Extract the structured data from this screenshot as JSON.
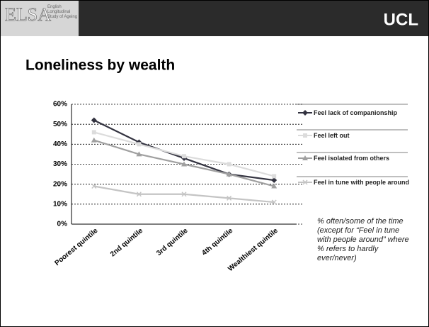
{
  "header": {
    "logo": "ELSA",
    "logo_subtitle": "English Longitudinal Study of Ageing",
    "brand": "UCL"
  },
  "chart_data": {
    "type": "line",
    "title": "Loneliness by wealth",
    "categories": [
      "Poorest quintile",
      "2nd quintile",
      "3rd quintile",
      "4th quintile",
      "Wealthiest quintile"
    ],
    "series": [
      {
        "name": "Feel lack of companionship",
        "color": "#333340",
        "marker": "diamond",
        "values": [
          52,
          41,
          33,
          25,
          22
        ]
      },
      {
        "name": "Feel left out",
        "color": "#dcdcdc",
        "marker": "square",
        "values": [
          46,
          40,
          34,
          30,
          24
        ]
      },
      {
        "name": "Feel isolated from others",
        "color": "#a0a0a0",
        "marker": "triangle",
        "values": [
          42,
          35,
          30,
          25,
          19
        ]
      },
      {
        "name": "Feel in tune with people around",
        "color": "#c4c4c4",
        "marker": "cross",
        "values": [
          19,
          15,
          15,
          13,
          11
        ]
      }
    ],
    "ylim": [
      0,
      60
    ],
    "yticks": [
      {
        "value": 0,
        "label": "0%"
      },
      {
        "value": 10,
        "label": "10%"
      },
      {
        "value": 20,
        "label": "20%"
      },
      {
        "value": 30,
        "label": "30%"
      },
      {
        "value": 40,
        "label": "40%"
      },
      {
        "value": 50,
        "label": "50%"
      },
      {
        "value": 60,
        "label": "60%"
      }
    ],
    "grid": true,
    "legend": "right"
  },
  "note": "% often/some of the time (except for “Feel in tune with people around” where % refers to hardly ever/never)"
}
